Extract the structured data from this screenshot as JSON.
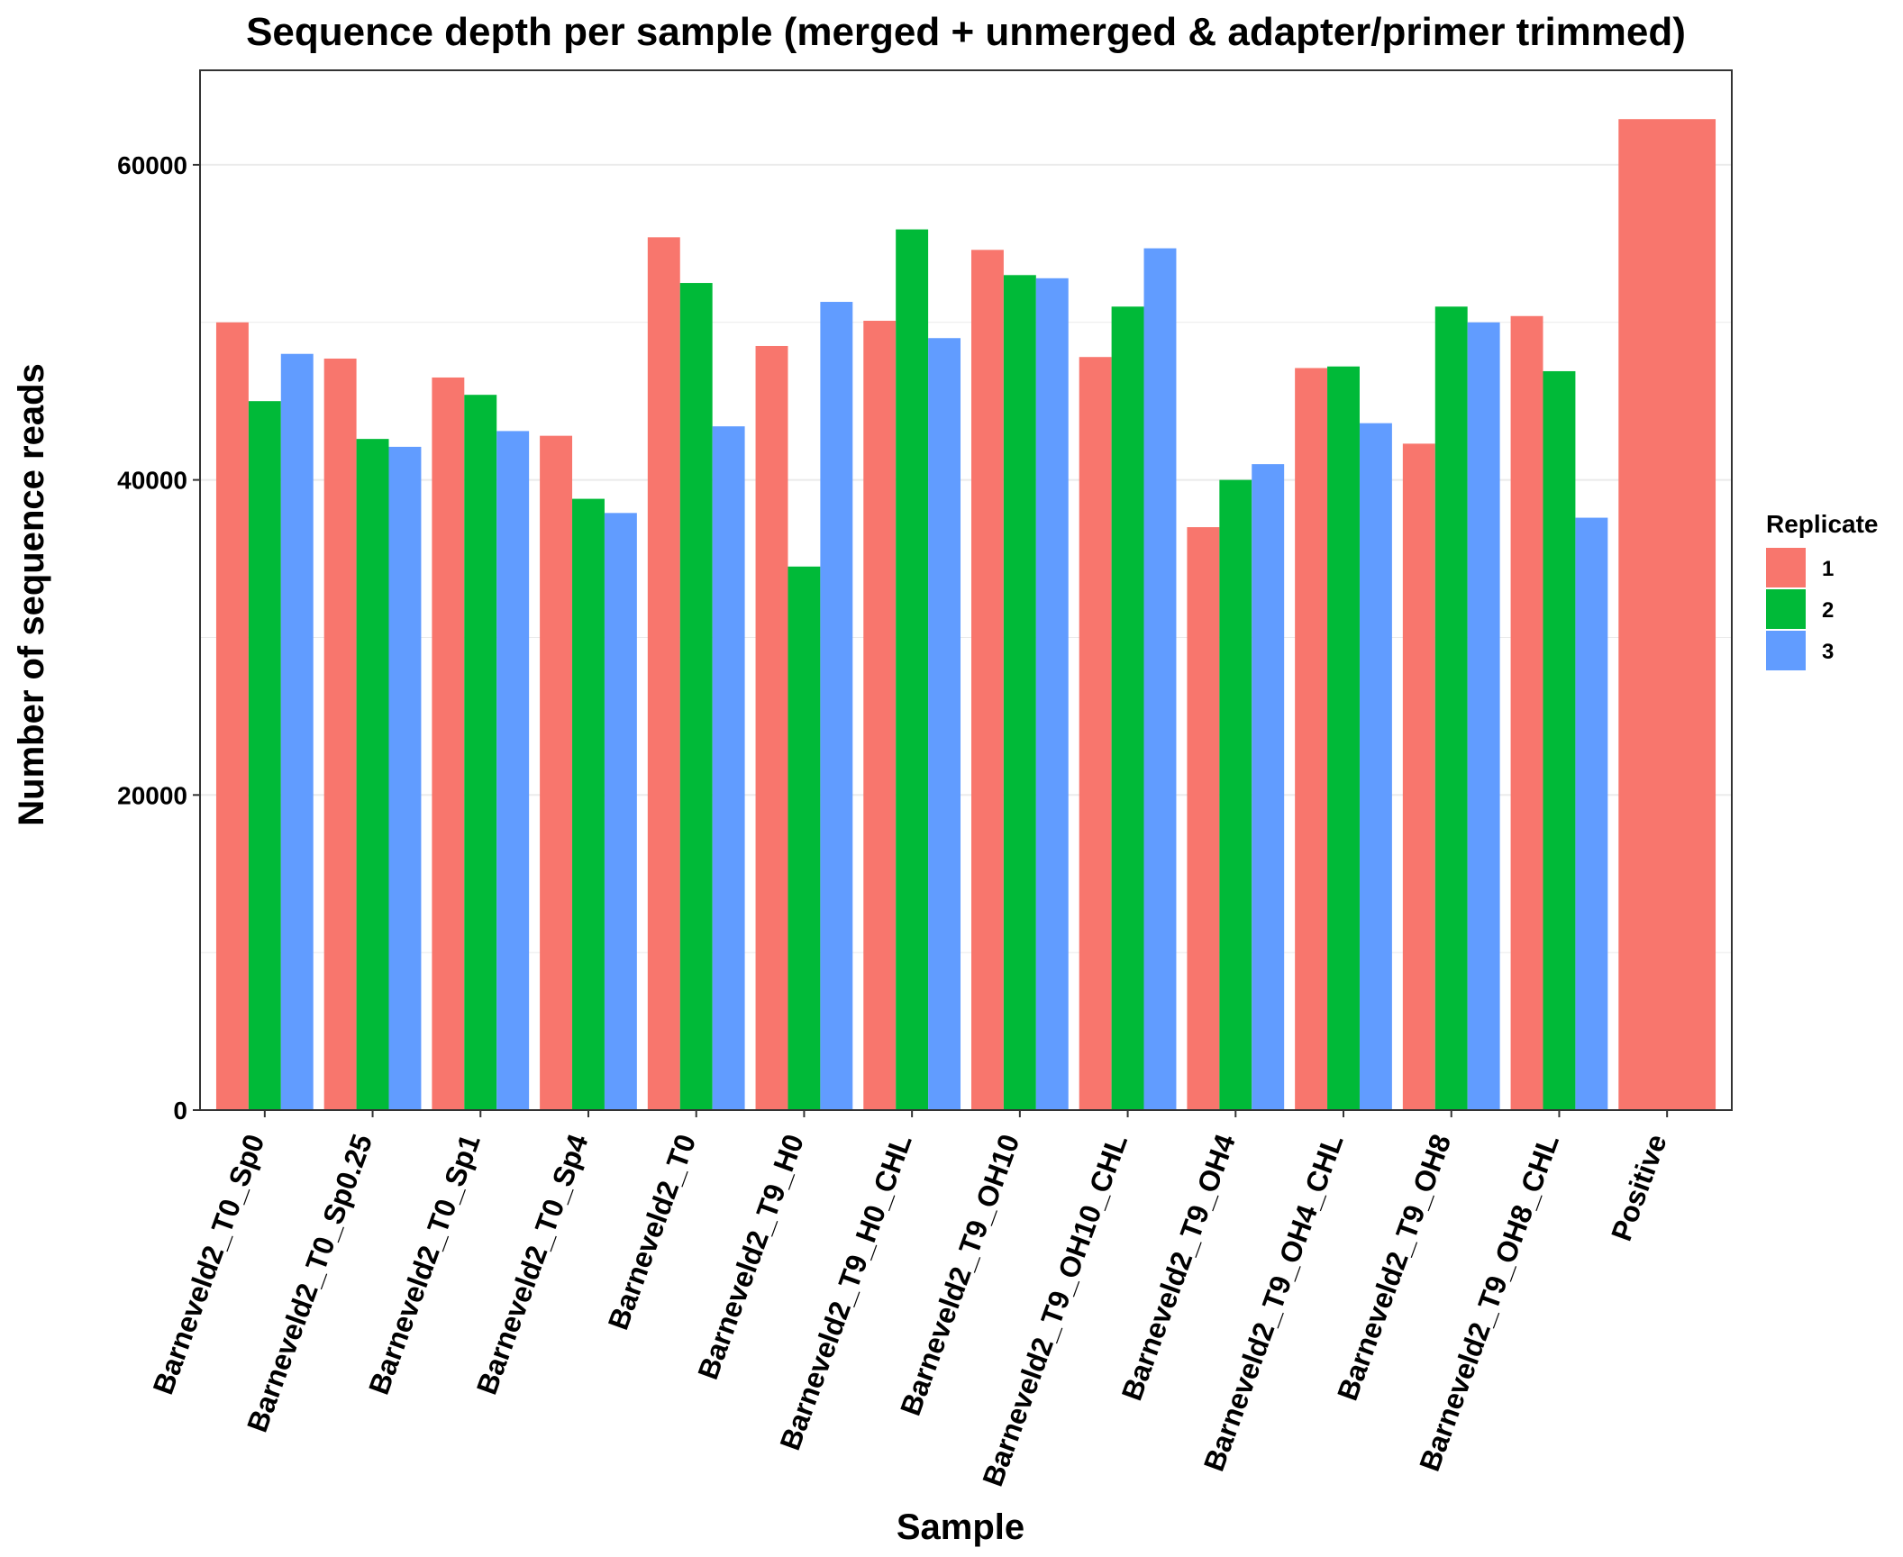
{
  "chart_data": {
    "type": "bar",
    "title": "Sequence depth per sample (merged + unmerged & adapter/primer trimmed)",
    "xlabel": "Sample",
    "ylabel": "Number of sequence reads",
    "ylim": [
      0,
      66000
    ],
    "yticks": [
      0,
      20000,
      40000,
      60000
    ],
    "grid": true,
    "legend": {
      "title": "Replicate",
      "position": "right"
    },
    "categories": [
      "Barneveld2_T0_Sp0",
      "Barneveld2_T0_Sp0.25",
      "Barneveld2_T0_Sp1",
      "Barneveld2_T0_Sp4",
      "Barneveld2_T0",
      "Barneveld2_T9_H0",
      "Barneveld2_T9_H0_CHL",
      "Barneveld2_T9_OH10",
      "Barneveld2_T9_OH10_CHL",
      "Barneveld2_T9_OH4",
      "Barneveld2_T9_OH4_CHL",
      "Barneveld2_T9_OH8",
      "Barneveld2_T9_OH8_CHL",
      "Positive"
    ],
    "series": [
      {
        "name": "1",
        "color": "#F8766D",
        "values": [
          50000,
          47700,
          46500,
          42800,
          55400,
          48500,
          50100,
          54600,
          47800,
          37000,
          47100,
          42300,
          50400,
          62900
        ]
      },
      {
        "name": "2",
        "color": "#00BA38",
        "values": [
          45000,
          42600,
          45400,
          38800,
          52500,
          34500,
          55900,
          53000,
          51000,
          40000,
          47200,
          51000,
          46900,
          null
        ]
      },
      {
        "name": "3",
        "color": "#619CFF",
        "values": [
          48000,
          42100,
          43100,
          37900,
          43400,
          51300,
          49000,
          52800,
          54700,
          41000,
          43600,
          50000,
          37600,
          null
        ]
      }
    ]
  }
}
